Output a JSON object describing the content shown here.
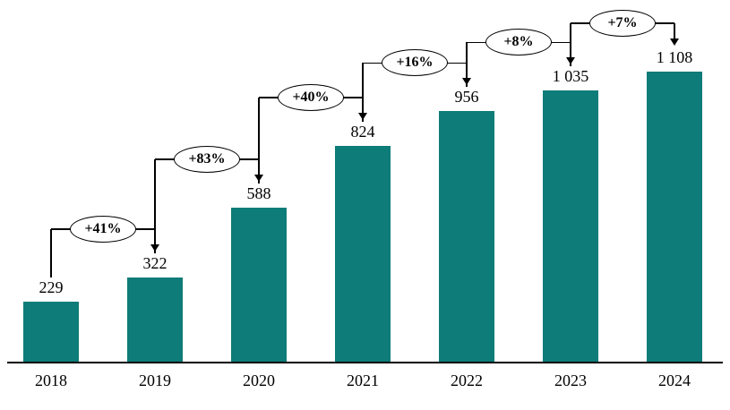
{
  "chart_data": {
    "type": "bar",
    "title": "",
    "xlabel": "",
    "ylabel": "",
    "categories": [
      "2018",
      "2019",
      "2020",
      "2021",
      "2022",
      "2023",
      "2024"
    ],
    "values": [
      229,
      322,
      588,
      824,
      956,
      1035,
      1108
    ],
    "value_labels": [
      "229",
      "322",
      "588",
      "824",
      "956",
      "1 035",
      "1 108"
    ],
    "growth_labels": [
      "+41%",
      "+83%",
      "+40%",
      "+16%",
      "+8%",
      "+7%"
    ],
    "bar_color": "#0e7c78",
    "axis_color": "#000000",
    "badge_border_color": "#000000",
    "ylim": [
      0,
      1150
    ],
    "grid": false,
    "legend_position": "none"
  }
}
